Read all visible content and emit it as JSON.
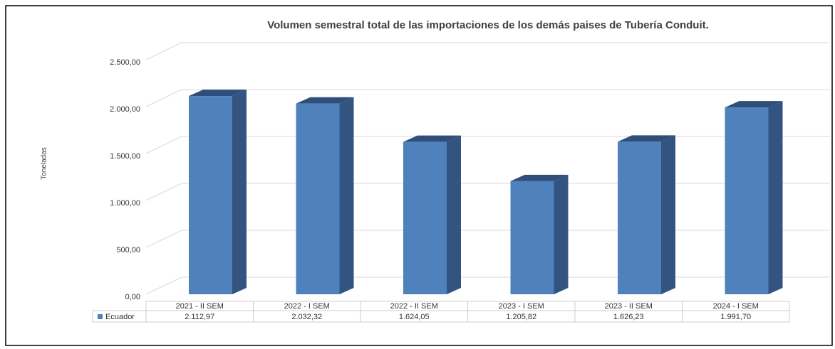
{
  "chart_data": {
    "type": "bar3d",
    "title": "Volumen semestral total de las importaciones de los demás paises de Tubería Conduit.",
    "y_label": "Toneladas",
    "categories": [
      "2021 - II SEM",
      "2022 - I SEM",
      "2022 - II SEM",
      "2023 - I SEM",
      "2023 - II SEM",
      "2024 - I SEM"
    ],
    "series": [
      {
        "name": "Ecuador",
        "color": "#4f81bd",
        "values": [
          2112.97,
          2032.32,
          1624.05,
          1205.82,
          1626.23,
          1991.7
        ],
        "value_labels": [
          "2.112,97",
          "2.032,32",
          "1.624,05",
          "1.205,82",
          "1.626,23",
          "1.991,70"
        ]
      }
    ],
    "ylim": [
      0,
      2500
    ],
    "yticks": [
      {
        "value": 0,
        "label": "0,00"
      },
      {
        "value": 500,
        "label": "500,00"
      },
      {
        "value": 1000,
        "label": "1.000,00"
      },
      {
        "value": 1500,
        "label": "1.500,00"
      },
      {
        "value": 2000,
        "label": "2.000,00"
      },
      {
        "value": 2500,
        "label": "2.500,00"
      }
    ],
    "grid": true,
    "legend": "bottom"
  }
}
